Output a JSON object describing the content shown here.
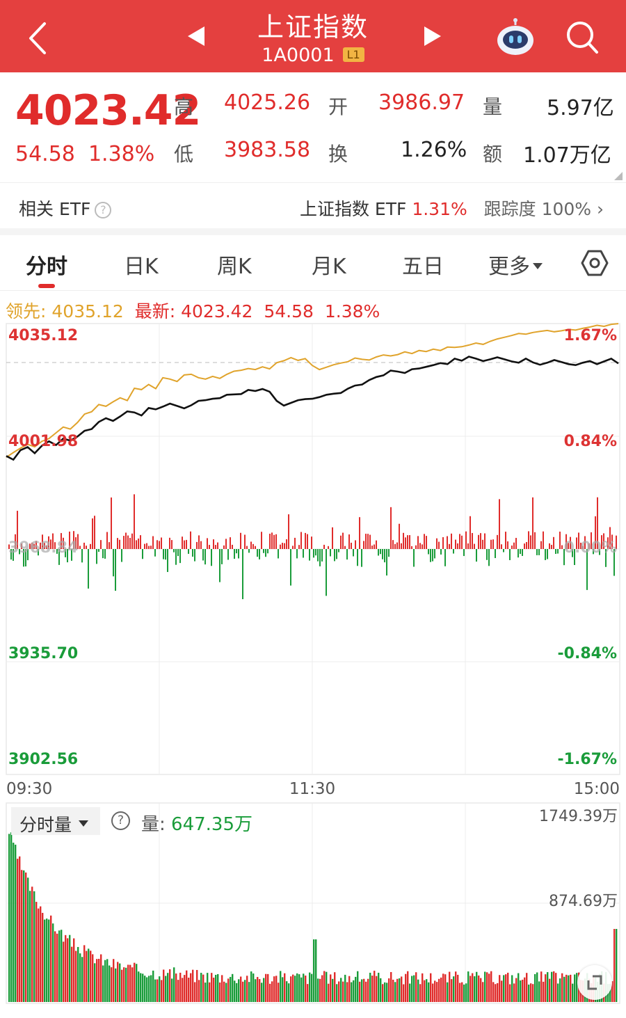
{
  "header": {
    "title": "上证指数",
    "code": "1A0001",
    "level_badge": "L1"
  },
  "quote": {
    "price": "4023.42",
    "change": "54.58",
    "change_pct": "1.38%",
    "high_label": "高",
    "high": "4025.26",
    "low_label": "低",
    "low": "3983.58",
    "open_label": "开",
    "open": "3986.97",
    "turnover_label": "换",
    "turnover": "1.26%",
    "volume_label": "量",
    "volume": "5.97亿",
    "amount_label": "额",
    "amount": "1.07万亿"
  },
  "etf": {
    "label": "相关 ETF",
    "help": "?",
    "name": "上证指数 ETF",
    "pct": "1.31%",
    "tracking_label": "跟踪度",
    "tracking": "100%",
    "arrow": "›"
  },
  "tabs": [
    {
      "label": "分时"
    },
    {
      "label": "日K"
    },
    {
      "label": "周K"
    },
    {
      "label": "月K"
    },
    {
      "label": "五日"
    },
    {
      "label": "更多"
    }
  ],
  "legend": {
    "lead_label": "领先:",
    "lead_value": "4035.12",
    "latest_label": "最新:",
    "latest_value": "4023.42",
    "latest_change": "54.58",
    "latest_pct": "1.38%"
  },
  "volume_panel": {
    "selector": "分时量",
    "help": "?",
    "label": "量:",
    "value": "647.35万",
    "max_label": "1749.39万",
    "mid_label": "874.69万"
  },
  "colors": {
    "brand": "#e4403f",
    "up": "#e02c2b",
    "down": "#1a9c3a",
    "lead_line": "#e0a32b",
    "price_line": "#111111"
  },
  "chart_data": [
    {
      "type": "line",
      "x_ticks": [
        "09:30",
        "11:30",
        "15:00"
      ],
      "y_left_ticks": [
        "4035.12",
        "4001.98",
        "3968.84",
        "3935.70",
        "3902.56"
      ],
      "y_right_ticks": [
        "1.67%",
        "0.84%",
        "0.00%",
        "-0.84%",
        "-1.67%"
      ],
      "ylim": [
        3902.56,
        4035.12
      ],
      "prev_close": 3968.84,
      "series": [
        {
          "values": [
            3995.8,
            3997.2,
            3998.5,
            3999.6,
            3998.9,
            4000.5,
            4001.3,
            4003.0,
            4004.7,
            4004.1,
            4006.0,
            4008.5,
            4009.2,
            4011.3,
            4010.8,
            4012.1,
            4013.3,
            4012.5,
            4016.1,
            4015.7,
            4017.2,
            4016.0,
            4019.2,
            4018.8,
            4018.1,
            4020.0,
            4020.2,
            4019.2,
            4018.8,
            4019.6,
            4019.0,
            4020.2,
            4021.1,
            4021.4,
            4021.9,
            4021.6,
            4022.4,
            4021.8,
            4023.6,
            4024.2,
            4025.1,
            4024.3,
            4024.8,
            4022.8,
            4021.6,
            4022.3,
            4023.0,
            4023.5,
            4023.9,
            4025.0,
            4024.6,
            4024.4,
            4025.3,
            4025.9,
            4025.6,
            4026.0,
            4026.8,
            4026.3,
            4027.2,
            4026.9,
            4027.6,
            4027.2,
            4028.2,
            4028.1,
            4028.3,
            4028.8,
            4029.4,
            4029.0,
            4029.9,
            4030.6,
            4031.1,
            4031.6,
            4032.2,
            4032.0,
            4032.5,
            4032.8,
            4033.1,
            4032.7,
            4033.0,
            4033.4,
            4033.2,
            4033.7,
            4034.1,
            4034.6,
            4034.3,
            4034.9,
            4035.1
          ]
        },
        {
          "values": [
            3996.2,
            3995.1,
            3997.9,
            3998.8,
            3997.0,
            3999.2,
            4000.5,
            3999.4,
            4001.3,
            4000.7,
            4001.9,
            4003.6,
            4004.1,
            4006.2,
            4007.3,
            4006.5,
            4007.8,
            4009.3,
            4009.0,
            4008.1,
            4010.3,
            4009.9,
            4010.7,
            4011.6,
            4010.9,
            4010.2,
            4011.1,
            4012.4,
            4012.6,
            4013.0,
            4013.2,
            4014.2,
            4014.3,
            4014.4,
            4015.6,
            4015.3,
            4015.9,
            4015.1,
            4012.4,
            4011.0,
            4011.8,
            4012.6,
            4012.9,
            4013.0,
            4013.5,
            4014.2,
            4014.5,
            4014.7,
            4016.0,
            4016.9,
            4017.2,
            4018.5,
            4019.4,
            4019.9,
            4021.3,
            4021.0,
            4020.6,
            4021.7,
            4021.9,
            4022.4,
            4022.9,
            4023.5,
            4023.2,
            4024.8,
            4024.2,
            4025.4,
            4024.8,
            4024.1,
            4024.6,
            4025.2,
            4024.6,
            4024.0,
            4023.6,
            4024.8,
            4023.7,
            4023.0,
            4023.6,
            4024.4,
            4023.8,
            4023.2,
            4022.9,
            4023.6,
            4024.1,
            4023.2,
            4024.0,
            4024.8,
            4023.4
          ]
        }
      ]
    },
    {
      "type": "bar",
      "ylim": [
        0,
        1749.39
      ],
      "y_ticks": [
        "1749.39万",
        "874.69万"
      ]
    }
  ]
}
